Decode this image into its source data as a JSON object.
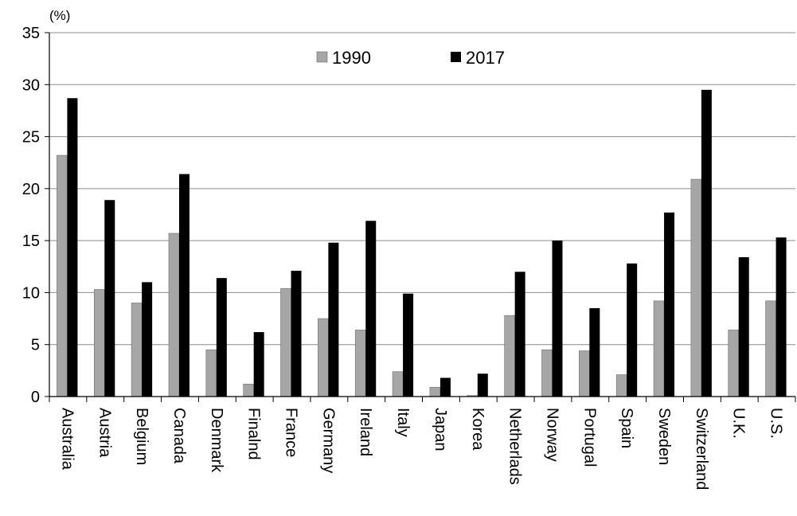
{
  "chart_data": {
    "type": "bar",
    "unit_label": "(%)",
    "categories": [
      "Australia",
      "Austria",
      "Belgium",
      "Canada",
      "Denmark",
      "Finalnd",
      "France",
      "Germany",
      "Ireland",
      "Italy",
      "Japan",
      "Korea",
      "Netherlads",
      "Norway",
      "Portugal",
      "Spain",
      "Sweden",
      "Switzerland",
      "U.K.",
      "U.S."
    ],
    "series": [
      {
        "name": "1990",
        "color": "#a6a6a6",
        "values": [
          23.2,
          10.3,
          9.0,
          15.7,
          4.5,
          1.2,
          10.4,
          7.5,
          6.4,
          2.4,
          0.9,
          0.1,
          7.8,
          4.5,
          4.4,
          2.1,
          9.2,
          20.9,
          6.4,
          9.2
        ]
      },
      {
        "name": "2017",
        "color": "#000000",
        "values": [
          28.7,
          18.9,
          11.0,
          21.4,
          11.4,
          6.2,
          12.1,
          14.8,
          16.9,
          9.9,
          1.8,
          2.2,
          12.0,
          15.0,
          8.5,
          12.8,
          17.7,
          29.5,
          13.4,
          15.3
        ]
      }
    ],
    "ylim": [
      0,
      35
    ],
    "yticks": [
      "0",
      "5",
      "10",
      "15",
      "20",
      "25",
      "30",
      "35"
    ],
    "grid": true,
    "legend_position": "top-center"
  }
}
